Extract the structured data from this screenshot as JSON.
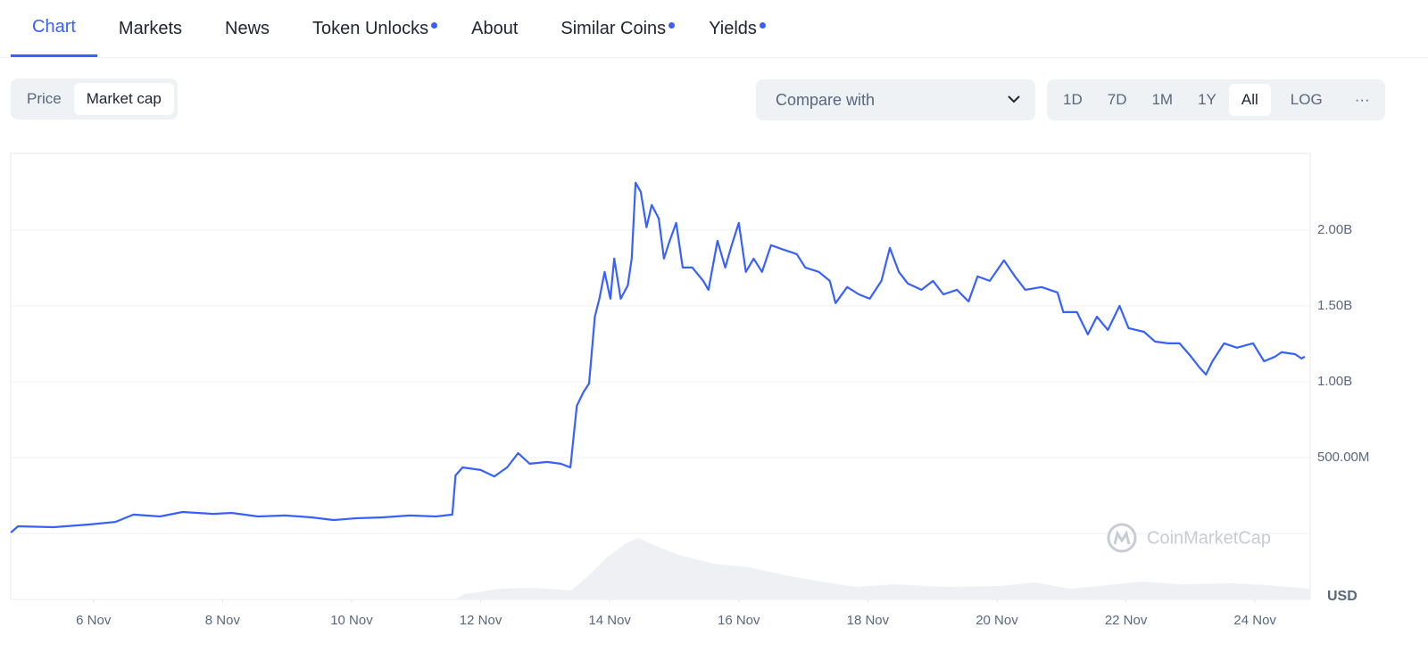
{
  "tabs": [
    {
      "label": "Chart",
      "active": true,
      "dot": false
    },
    {
      "label": "Markets",
      "active": false,
      "dot": false
    },
    {
      "label": "News",
      "active": false,
      "dot": false
    },
    {
      "label": "Token Unlocks",
      "active": false,
      "dot": true
    },
    {
      "label": "About",
      "active": false,
      "dot": false
    },
    {
      "label": "Similar Coins",
      "active": false,
      "dot": true
    },
    {
      "label": "Yields",
      "active": false,
      "dot": true
    }
  ],
  "toggle": {
    "options": [
      "Price",
      "Market cap"
    ],
    "selected": 1
  },
  "compare": "Compare with",
  "ranges": {
    "options": [
      "1D",
      "7D",
      "1M",
      "1Y",
      "All"
    ],
    "selected": 4,
    "log": "LOG",
    "more": "···"
  },
  "chart_data": {
    "type": "line",
    "color": "#3861fb",
    "watermark": "CoinMarketCap",
    "currency": "USD",
    "grid": true,
    "xlim": [
      4.717,
      24.855
    ],
    "ylim": [
      0,
      2505000000
    ],
    "xticks": [
      {
        "value": 6,
        "label": "6 Nov"
      },
      {
        "value": 8,
        "label": "8 Nov"
      },
      {
        "value": 10,
        "label": "10 Nov"
      },
      {
        "value": 12,
        "label": "12 Nov"
      },
      {
        "value": 14,
        "label": "14 Nov"
      },
      {
        "value": 16,
        "label": "16 Nov"
      },
      {
        "value": 18,
        "label": "18 Nov"
      },
      {
        "value": 20,
        "label": "20 Nov"
      },
      {
        "value": 22,
        "label": "22 Nov"
      },
      {
        "value": 24,
        "label": "24 Nov"
      }
    ],
    "yticks": [
      {
        "value": 500000000,
        "label": "500.00M"
      },
      {
        "value": 1000000000,
        "label": "1.00B"
      },
      {
        "value": 1500000000,
        "label": "1.50B"
      },
      {
        "value": 2000000000,
        "label": "2.00B"
      }
    ],
    "x": [
      4.72,
      4.83,
      5.38,
      5.93,
      6.34,
      6.62,
      7.03,
      7.38,
      7.86,
      8.14,
      8.55,
      8.97,
      9.38,
      9.72,
      10.07,
      10.48,
      10.9,
      11.31,
      11.56,
      11.61,
      11.72,
      12.0,
      12.21,
      12.41,
      12.58,
      12.76,
      13.03,
      13.24,
      13.39,
      13.49,
      13.59,
      13.68,
      13.77,
      13.84,
      13.92,
      14.01,
      14.07,
      14.17,
      14.28,
      14.34,
      14.4,
      14.48,
      14.57,
      14.65,
      14.76,
      14.84,
      14.92,
      15.03,
      15.13,
      15.28,
      15.45,
      15.53,
      15.67,
      15.79,
      15.89,
      16.0,
      16.11,
      16.23,
      16.36,
      16.5,
      16.69,
      16.9,
      17.03,
      17.24,
      17.41,
      17.5,
      17.68,
      17.86,
      18.03,
      18.21,
      18.34,
      18.48,
      18.62,
      18.83,
      19.01,
      19.17,
      19.38,
      19.56,
      19.7,
      19.89,
      20.11,
      20.28,
      20.44,
      20.69,
      20.94,
      21.03,
      21.24,
      21.41,
      21.55,
      21.72,
      21.9,
      22.04,
      22.28,
      22.45,
      22.65,
      22.83,
      23.01,
      23.14,
      23.24,
      23.34,
      23.52,
      23.72,
      23.97,
      24.14,
      24.31,
      24.41,
      24.62,
      24.72,
      24.77
    ],
    "values": [
      6000000,
      47000000,
      41000000,
      59000000,
      76000000,
      124000000,
      112000000,
      141000000,
      129000000,
      135000000,
      112000000,
      118000000,
      106000000,
      88000000,
      100000000,
      106000000,
      118000000,
      112000000,
      124000000,
      382000000,
      435000000,
      418000000,
      376000000,
      435000000,
      529000000,
      459000000,
      471000000,
      459000000,
      435000000,
      841000000,
      929000000,
      988000000,
      1429000000,
      1547000000,
      1724000000,
      1547000000,
      1812000000,
      1547000000,
      1635000000,
      1812000000,
      2312000000,
      2253000000,
      2018000000,
      2165000000,
      2076000000,
      1812000000,
      1918000000,
      2047000000,
      1753000000,
      1753000000,
      1665000000,
      1606000000,
      1929000000,
      1753000000,
      1900000000,
      2047000000,
      1724000000,
      1812000000,
      1724000000,
      1900000000,
      1871000000,
      1841000000,
      1753000000,
      1724000000,
      1665000000,
      1518000000,
      1624000000,
      1576000000,
      1547000000,
      1665000000,
      1882000000,
      1724000000,
      1647000000,
      1606000000,
      1665000000,
      1576000000,
      1606000000,
      1529000000,
      1694000000,
      1665000000,
      1800000000,
      1694000000,
      1606000000,
      1624000000,
      1588000000,
      1459000000,
      1459000000,
      1312000000,
      1429000000,
      1341000000,
      1500000000,
      1353000000,
      1329000000,
      1265000000,
      1253000000,
      1253000000,
      1165000000,
      1094000000,
      1047000000,
      1135000000,
      1253000000,
      1224000000,
      1253000000,
      1135000000,
      1165000000,
      1194000000,
      1182000000,
      1153000000,
      1165000000
    ]
  }
}
